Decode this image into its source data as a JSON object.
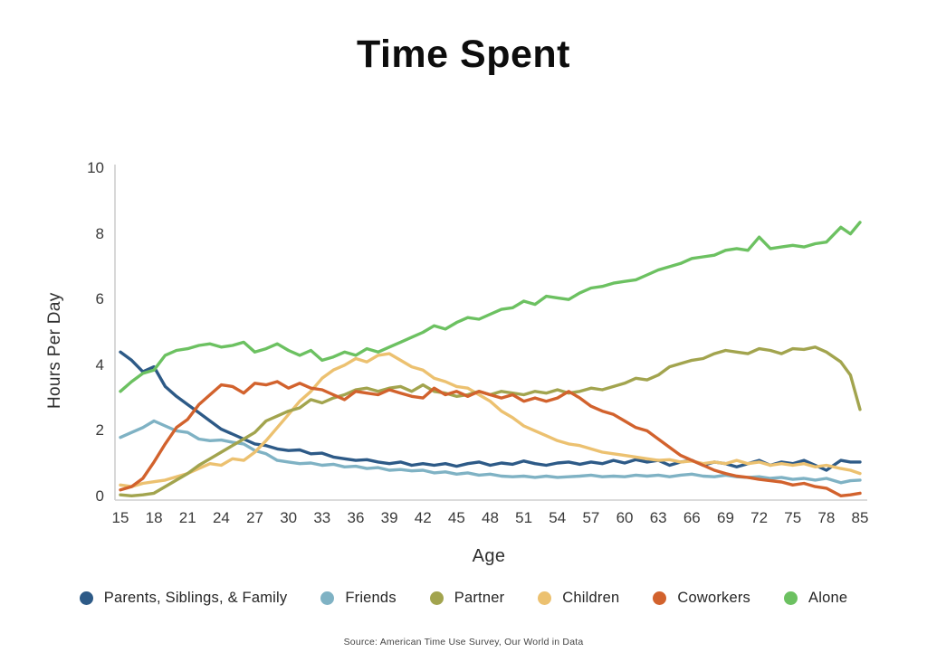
{
  "title": "Time Spent",
  "source": "Source: American Time Use Survey, Our World in Data",
  "chart_data": {
    "type": "line",
    "title": "Time Spent",
    "xlabel": "Age",
    "ylabel": "Hours Per Day",
    "ylim": [
      0,
      10
    ],
    "y_ticks": [
      0,
      2,
      4,
      6,
      8,
      10
    ],
    "x_ticks": [
      15,
      18,
      21,
      24,
      27,
      30,
      33,
      36,
      39,
      42,
      45,
      48,
      51,
      54,
      57,
      60,
      63,
      66,
      69,
      72,
      75,
      78,
      85
    ],
    "grid": false,
    "legend_position": "bottom",
    "x": [
      15,
      16,
      17,
      18,
      19,
      20,
      21,
      22,
      23,
      24,
      25,
      26,
      27,
      28,
      29,
      30,
      31,
      32,
      33,
      34,
      35,
      36,
      37,
      38,
      39,
      40,
      41,
      42,
      43,
      44,
      45,
      46,
      47,
      48,
      49,
      50,
      51,
      52,
      53,
      54,
      55,
      56,
      57,
      58,
      59,
      60,
      61,
      62,
      63,
      64,
      65,
      66,
      67,
      68,
      69,
      70,
      71,
      72,
      73,
      74,
      75,
      76,
      77,
      78,
      81,
      83,
      85
    ],
    "series": [
      {
        "name": "Friends",
        "color": "#7fb2c4",
        "values": [
          1.8,
          1.95,
          2.1,
          2.3,
          2.15,
          2.0,
          1.95,
          1.75,
          1.7,
          1.72,
          1.65,
          1.6,
          1.4,
          1.3,
          1.1,
          1.05,
          1.0,
          1.02,
          0.95,
          0.98,
          0.9,
          0.92,
          0.85,
          0.88,
          0.8,
          0.82,
          0.78,
          0.8,
          0.72,
          0.75,
          0.68,
          0.72,
          0.65,
          0.68,
          0.62,
          0.6,
          0.62,
          0.58,
          0.62,
          0.58,
          0.6,
          0.62,
          0.65,
          0.6,
          0.62,
          0.6,
          0.65,
          0.62,
          0.65,
          0.6,
          0.65,
          0.68,
          0.62,
          0.6,
          0.65,
          0.6,
          0.58,
          0.6,
          0.55,
          0.58,
          0.52,
          0.55,
          0.5,
          0.55,
          0.42,
          0.48,
          0.5
        ]
      },
      {
        "name": "Parents, Siblings, & Family",
        "color": "#2d5a87",
        "values": [
          4.4,
          4.15,
          3.8,
          3.95,
          3.35,
          3.05,
          2.8,
          2.55,
          2.3,
          2.05,
          1.9,
          1.75,
          1.6,
          1.55,
          1.45,
          1.4,
          1.42,
          1.3,
          1.32,
          1.2,
          1.15,
          1.1,
          1.12,
          1.05,
          1.0,
          1.05,
          0.95,
          1.0,
          0.95,
          1.0,
          0.92,
          1.0,
          1.05,
          0.95,
          1.02,
          0.98,
          1.08,
          1.0,
          0.95,
          1.02,
          1.05,
          0.98,
          1.05,
          1.0,
          1.1,
          1.02,
          1.12,
          1.05,
          1.1,
          0.95,
          1.05,
          1.1,
          0.95,
          1.05,
          1.0,
          0.9,
          1.0,
          1.1,
          0.95,
          1.05,
          1.0,
          1.1,
          0.95,
          0.8,
          1.1,
          1.05,
          1.05
        ]
      },
      {
        "name": "Children",
        "color": "#ecc170",
        "values": [
          0.35,
          0.3,
          0.4,
          0.45,
          0.5,
          0.6,
          0.7,
          0.85,
          1.0,
          0.95,
          1.15,
          1.1,
          1.35,
          1.7,
          2.1,
          2.5,
          2.9,
          3.2,
          3.6,
          3.85,
          4.0,
          4.2,
          4.1,
          4.3,
          4.35,
          4.15,
          3.95,
          3.85,
          3.6,
          3.5,
          3.35,
          3.3,
          3.1,
          2.9,
          2.6,
          2.4,
          2.15,
          2.0,
          1.85,
          1.7,
          1.6,
          1.55,
          1.45,
          1.35,
          1.3,
          1.25,
          1.2,
          1.15,
          1.1,
          1.12,
          1.05,
          1.08,
          1.0,
          1.05,
          1.0,
          1.1,
          1.0,
          1.05,
          0.95,
          1.0,
          0.95,
          1.0,
          0.9,
          0.95,
          0.85,
          0.8,
          0.7
        ]
      },
      {
        "name": "Partner",
        "color": "#a2a44e",
        "values": [
          0.05,
          0.02,
          0.05,
          0.1,
          0.3,
          0.5,
          0.7,
          0.95,
          1.15,
          1.35,
          1.55,
          1.75,
          1.95,
          2.3,
          2.45,
          2.6,
          2.7,
          2.95,
          2.85,
          3.0,
          3.1,
          3.25,
          3.3,
          3.2,
          3.3,
          3.35,
          3.2,
          3.4,
          3.2,
          3.15,
          3.05,
          3.1,
          3.2,
          3.1,
          3.2,
          3.15,
          3.1,
          3.2,
          3.15,
          3.25,
          3.15,
          3.2,
          3.3,
          3.25,
          3.35,
          3.45,
          3.6,
          3.55,
          3.7,
          3.95,
          4.05,
          4.15,
          4.2,
          4.35,
          4.45,
          4.4,
          4.35,
          4.5,
          4.45,
          4.35,
          4.5,
          4.48,
          4.55,
          4.4,
          4.1,
          3.7,
          2.65
        ]
      },
      {
        "name": "Coworkers",
        "color": "#d2622d",
        "values": [
          0.2,
          0.3,
          0.55,
          1.05,
          1.6,
          2.1,
          2.35,
          2.8,
          3.1,
          3.4,
          3.35,
          3.15,
          3.45,
          3.4,
          3.5,
          3.3,
          3.45,
          3.3,
          3.25,
          3.1,
          2.95,
          3.2,
          3.15,
          3.1,
          3.25,
          3.15,
          3.05,
          3.0,
          3.3,
          3.1,
          3.2,
          3.05,
          3.2,
          3.1,
          3.0,
          3.1,
          2.9,
          3.0,
          2.9,
          3.0,
          3.2,
          3.0,
          2.75,
          2.6,
          2.5,
          2.3,
          2.1,
          2.0,
          1.75,
          1.5,
          1.25,
          1.1,
          0.95,
          0.8,
          0.7,
          0.62,
          0.58,
          0.52,
          0.48,
          0.44,
          0.35,
          0.4,
          0.3,
          0.25,
          0.02,
          0.05,
          0.1
        ]
      },
      {
        "name": "Alone",
        "color": "#6cc161",
        "values": [
          3.2,
          3.5,
          3.75,
          3.85,
          4.3,
          4.45,
          4.5,
          4.6,
          4.65,
          4.55,
          4.6,
          4.7,
          4.4,
          4.5,
          4.65,
          4.45,
          4.3,
          4.45,
          4.15,
          4.25,
          4.4,
          4.3,
          4.5,
          4.4,
          4.55,
          4.7,
          4.85,
          5.0,
          5.2,
          5.1,
          5.3,
          5.45,
          5.4,
          5.55,
          5.7,
          5.75,
          5.95,
          5.85,
          6.1,
          6.05,
          6.0,
          6.2,
          6.35,
          6.4,
          6.5,
          6.55,
          6.6,
          6.75,
          6.9,
          7.0,
          7.1,
          7.25,
          7.3,
          7.35,
          7.5,
          7.55,
          7.5,
          7.9,
          7.55,
          7.6,
          7.65,
          7.6,
          7.7,
          7.75,
          8.2,
          8.0,
          8.35
        ]
      }
    ],
    "legend_order": [
      "Parents, Siblings, & Family",
      "Friends",
      "Partner",
      "Children",
      "Coworkers",
      "Alone"
    ]
  }
}
